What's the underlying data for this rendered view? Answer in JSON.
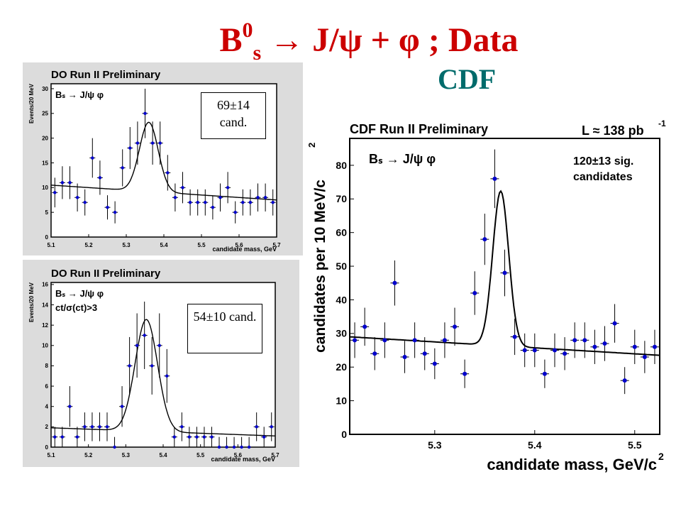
{
  "slide": {
    "title_b": "B",
    "title_sup": "0",
    "title_sub": "s",
    "title_rest": " → J/ψ + φ ; Data",
    "cdf_label": "CDF"
  },
  "colors": {
    "title": "#cc0000",
    "cdf_label": "#006b6b",
    "points": "#0000cc",
    "panel_bg": "#dcdcdc"
  },
  "chart_data": [
    {
      "type": "scatter",
      "title": "DO Run II Preliminary",
      "process": "Bₛ → J/ψ φ",
      "cut": "",
      "xlabel": "candidate mass, GeV",
      "ylabel": "Events/20 MeV",
      "xlim": [
        5.1,
        5.7
      ],
      "ylim": [
        0,
        31
      ],
      "xticks": [
        5.1,
        5.2,
        5.3,
        5.4,
        5.5,
        5.6,
        5.7
      ],
      "xtick_labels": [
        "5.1",
        "5.2",
        "5.3",
        "5.4",
        "5.5",
        "5.6",
        "5.7"
      ],
      "yticks": [
        0,
        5,
        10,
        15,
        20,
        25,
        30
      ],
      "ytick_labels": [
        "0",
        "5",
        "10",
        "15",
        "20",
        "25",
        "30"
      ],
      "annotation": "69±14 cand.",
      "points": {
        "x": [
          5.11,
          5.13,
          5.15,
          5.17,
          5.19,
          5.21,
          5.23,
          5.25,
          5.27,
          5.29,
          5.31,
          5.33,
          5.35,
          5.37,
          5.39,
          5.41,
          5.43,
          5.45,
          5.47,
          5.49,
          5.51,
          5.53,
          5.55,
          5.57,
          5.59,
          5.61,
          5.63,
          5.65,
          5.67,
          5.69
        ],
        "y": [
          9,
          11,
          11,
          8,
          7,
          16,
          12,
          6,
          5,
          14,
          18,
          19,
          25,
          19,
          19,
          13,
          8,
          10,
          7,
          7,
          7,
          6,
          8,
          10,
          5,
          7,
          7,
          8,
          8,
          7
        ]
      },
      "fit": {
        "background_start": 10.5,
        "background_end": 7.5,
        "peak_mean": 5.36,
        "peak_sigma": 0.025,
        "peak_height": 14
      }
    },
    {
      "type": "scatter",
      "title": "DO Run II Preliminary",
      "process": "Bₛ → J/ψ φ",
      "cut": "ct/σ(ct)>3",
      "xlabel": "candidate mass, GeV",
      "ylabel": "Events/20 MeV",
      "xlim": [
        5.1,
        5.7
      ],
      "ylim": [
        0,
        16.2
      ],
      "xticks": [
        5.1,
        5.2,
        5.3,
        5.4,
        5.5,
        5.6,
        5.7
      ],
      "xtick_labels": [
        "5.1",
        "5.2",
        "5.3",
        "5.4",
        "5.5",
        "5.6",
        "5.7"
      ],
      "yticks": [
        0,
        2,
        4,
        6,
        8,
        10,
        12,
        14,
        16
      ],
      "ytick_labels": [
        "0",
        "2",
        "4",
        "6",
        "8",
        "10",
        "12",
        "14",
        "16"
      ],
      "annotation": "54±10 cand.",
      "points": {
        "x": [
          5.11,
          5.13,
          5.15,
          5.17,
          5.19,
          5.21,
          5.23,
          5.25,
          5.27,
          5.29,
          5.31,
          5.33,
          5.35,
          5.37,
          5.39,
          5.41,
          5.43,
          5.45,
          5.47,
          5.49,
          5.51,
          5.53,
          5.55,
          5.57,
          5.59,
          5.61,
          5.63,
          5.65,
          5.67,
          5.69
        ],
        "y": [
          1,
          1,
          4,
          1,
          2,
          2,
          2,
          2,
          0,
          4,
          8,
          10,
          11,
          8,
          10,
          7,
          1,
          2,
          1,
          1,
          1,
          1,
          0,
          0,
          0,
          0,
          0,
          2,
          1,
          2
        ]
      },
      "fit": {
        "background_start": 1.9,
        "background_end": 1.1,
        "peak_mean": 5.355,
        "peak_sigma": 0.03,
        "peak_height": 11
      }
    },
    {
      "type": "scatter",
      "title": "CDF Run II Preliminary",
      "luminosity": "L ≈ 138 pb",
      "luminosity_sup": "-1",
      "process": "Bₛ → J/ψ φ",
      "annotation_line1": "120±13 sig.",
      "annotation_line2": "candidates",
      "xlabel": "candidate mass, GeV/c",
      "xlabel_sup": "2",
      "ylabel": "candidates per 10 MeV/c",
      "ylabel_sup": "2",
      "xlim": [
        5.215,
        5.525
      ],
      "ylim": [
        0,
        88
      ],
      "xticks": [
        5.3,
        5.4,
        5.5
      ],
      "xtick_labels": [
        "5.3",
        "5.4",
        "5.5"
      ],
      "yticks": [
        0,
        10,
        20,
        30,
        40,
        50,
        60,
        70,
        80
      ],
      "ytick_labels": [
        "0",
        "10",
        "20",
        "30",
        "40",
        "50",
        "60",
        "70",
        "80"
      ],
      "points": {
        "x": [
          5.22,
          5.23,
          5.24,
          5.25,
          5.26,
          5.27,
          5.28,
          5.29,
          5.3,
          5.31,
          5.32,
          5.33,
          5.34,
          5.35,
          5.36,
          5.37,
          5.38,
          5.39,
          5.4,
          5.41,
          5.42,
          5.43,
          5.44,
          5.45,
          5.46,
          5.47,
          5.48,
          5.49,
          5.5,
          5.51,
          5.52
        ],
        "y": [
          28,
          32,
          24,
          28,
          45,
          23,
          28,
          24,
          21,
          28,
          32,
          18,
          42,
          58,
          76,
          48,
          29,
          25,
          25,
          18,
          25,
          24,
          28,
          28,
          26,
          27,
          33,
          16,
          26,
          23,
          26
        ]
      },
      "fit": {
        "background_start": 29,
        "background_end": 23.5,
        "peak_mean": 5.366,
        "peak_sigma": 0.008,
        "peak_height": 46
      }
    }
  ]
}
